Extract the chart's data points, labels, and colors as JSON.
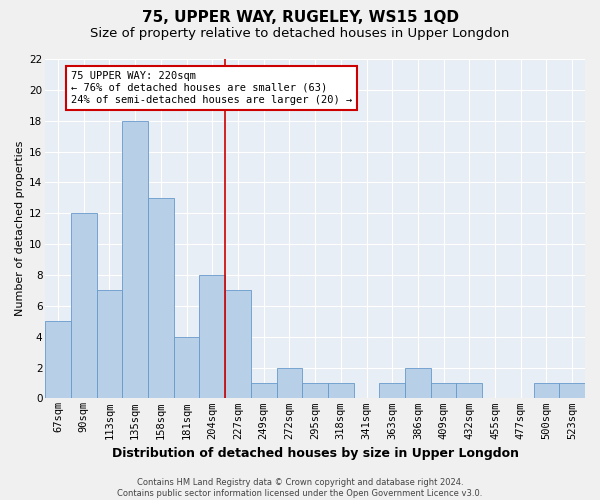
{
  "title": "75, UPPER WAY, RUGELEY, WS15 1QD",
  "subtitle": "Size of property relative to detached houses in Upper Longdon",
  "xlabel": "Distribution of detached houses by size in Upper Longdon",
  "ylabel": "Number of detached properties",
  "footer_line1": "Contains HM Land Registry data © Crown copyright and database right 2024.",
  "footer_line2": "Contains public sector information licensed under the Open Government Licence v3.0.",
  "annotation_line1": "75 UPPER WAY: 220sqm",
  "annotation_line2": "← 76% of detached houses are smaller (63)",
  "annotation_line3": "24% of semi-detached houses are larger (20) →",
  "categories": [
    "67sqm",
    "90sqm",
    "113sqm",
    "135sqm",
    "158sqm",
    "181sqm",
    "204sqm",
    "227sqm",
    "249sqm",
    "272sqm",
    "295sqm",
    "318sqm",
    "341sqm",
    "363sqm",
    "386sqm",
    "409sqm",
    "432sqm",
    "455sqm",
    "477sqm",
    "500sqm",
    "523sqm"
  ],
  "values": [
    5,
    12,
    7,
    18,
    13,
    4,
    8,
    7,
    1,
    2,
    1,
    1,
    0,
    1,
    2,
    1,
    1,
    0,
    0,
    1,
    1
  ],
  "bar_color": "#b8cfe8",
  "bar_edge_color": "#6699cc",
  "vline_index": 6.5,
  "ylim": [
    0,
    22
  ],
  "yticks": [
    0,
    2,
    4,
    6,
    8,
    10,
    12,
    14,
    16,
    18,
    20,
    22
  ],
  "bg_color": "#e8eef5",
  "grid_color": "#ffffff",
  "fig_bg_color": "#f0f0f0",
  "title_fontsize": 11,
  "subtitle_fontsize": 9.5,
  "xlabel_fontsize": 9,
  "ylabel_fontsize": 8,
  "tick_fontsize": 7.5,
  "annotation_fontsize": 7.5,
  "footer_fontsize": 6
}
